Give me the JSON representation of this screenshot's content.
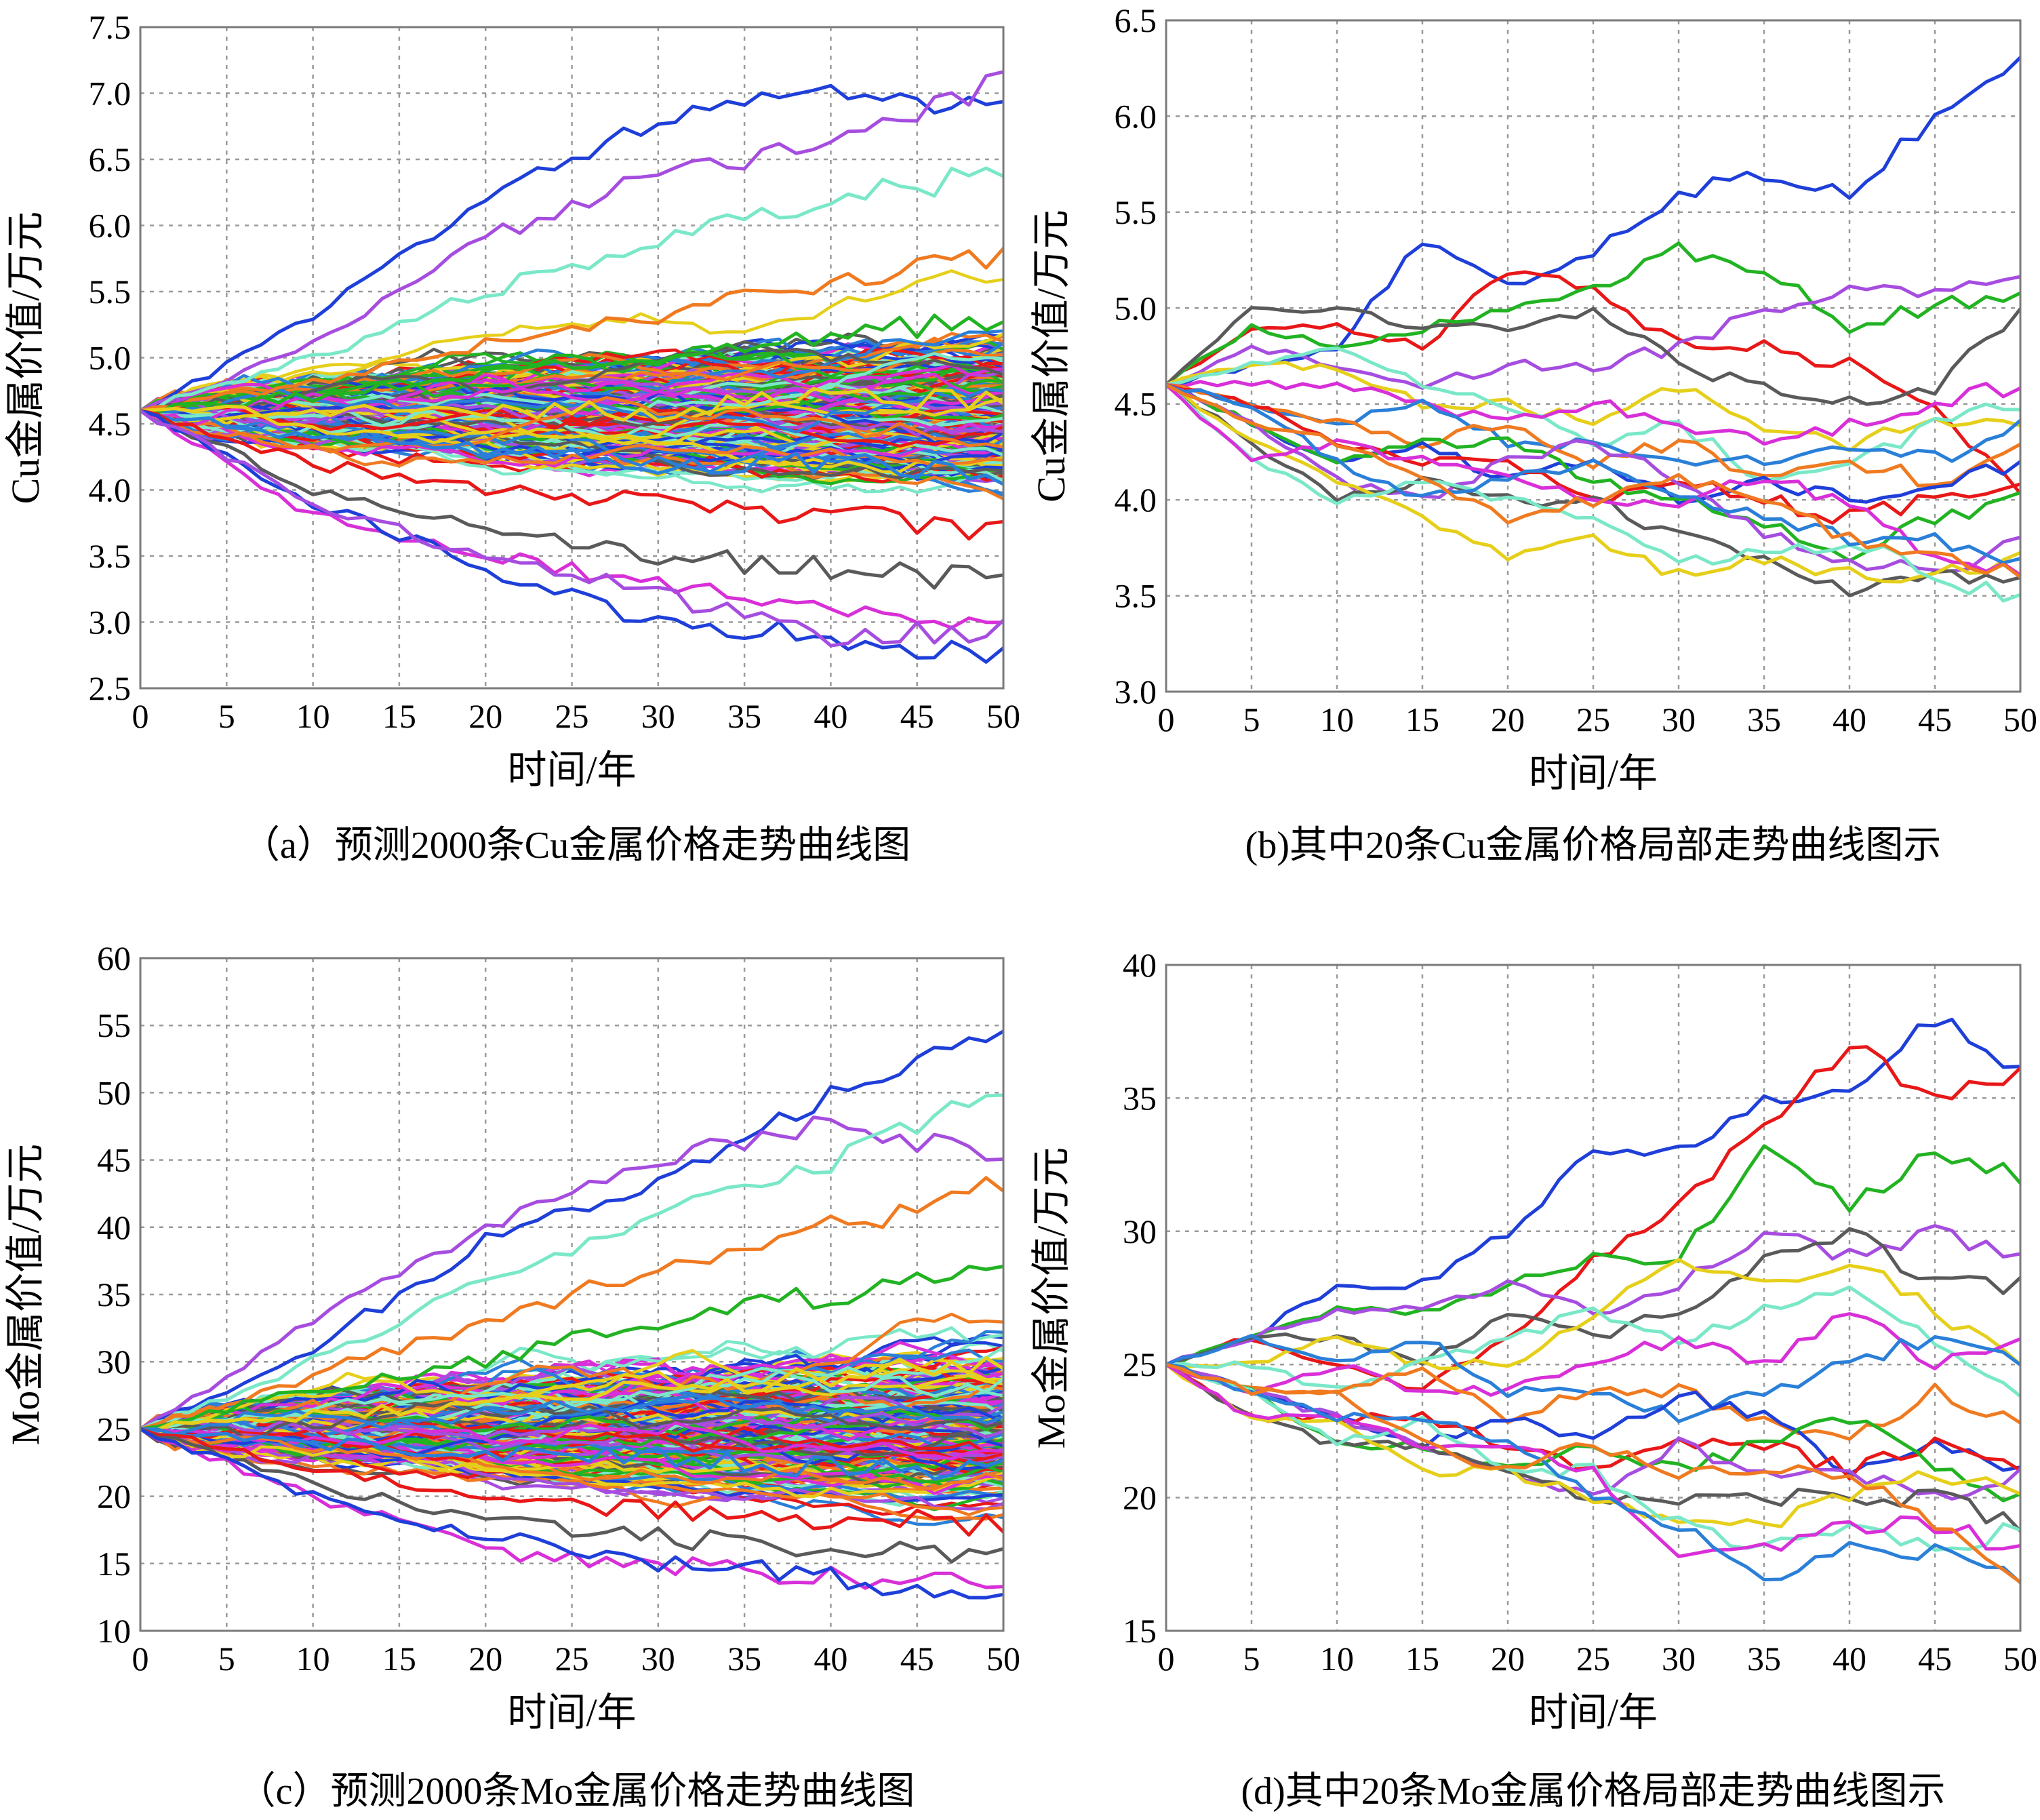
{
  "chart_data": [
    {
      "id": "a",
      "type": "line",
      "caption": "（a）预测2000条Cu金属价格走势曲线图",
      "xlabel": "时间/年",
      "ylabel": "Cu金属价值/万元",
      "xlim": [
        0,
        50
      ],
      "ylim": [
        2.5,
        7.5
      ],
      "xticks": [
        "0",
        "5",
        "10",
        "15",
        "20",
        "25",
        "30",
        "35",
        "40",
        "45",
        "50"
      ],
      "yticks": [
        "2.5",
        "3.0",
        "3.5",
        "4.0",
        "4.5",
        "5.0",
        "5.5",
        "6.0",
        "6.5",
        "7.0",
        "7.5"
      ],
      "grid": true,
      "start_value": 4.6,
      "line_count": 2000,
      "x": [
        0,
        10,
        20,
        30,
        40,
        50
      ],
      "series": [
        {
          "values": [
            4.6,
            5.3,
            6.2,
            6.8,
            7.0,
            6.9
          ]
        },
        {
          "values": [
            4.6,
            5.1,
            5.9,
            6.4,
            6.6,
            7.1
          ]
        },
        {
          "values": [
            4.6,
            5.0,
            5.5,
            5.9,
            6.2,
            6.4
          ]
        },
        {
          "values": [
            4.6,
            4.8,
            5.1,
            5.3,
            5.6,
            5.8
          ]
        },
        {
          "values": [
            4.6,
            4.7,
            4.9,
            5.0,
            5.2,
            5.3
          ]
        },
        {
          "values": [
            4.6,
            4.6,
            4.6,
            4.6,
            4.7,
            4.7
          ]
        },
        {
          "values": [
            4.6,
            4.4,
            4.3,
            4.2,
            4.2,
            4.1
          ]
        },
        {
          "values": [
            4.6,
            4.2,
            4.0,
            3.9,
            3.8,
            3.7
          ]
        },
        {
          "values": [
            4.6,
            4.0,
            3.7,
            3.5,
            3.4,
            3.3
          ]
        },
        {
          "values": [
            4.6,
            3.8,
            3.5,
            3.3,
            3.1,
            3.0
          ]
        },
        {
          "values": [
            4.6,
            3.9,
            3.4,
            3.0,
            2.9,
            2.75
          ]
        },
        {
          "values": [
            4.6,
            3.9,
            3.5,
            3.2,
            2.9,
            2.95
          ]
        }
      ]
    },
    {
      "id": "b",
      "type": "line",
      "caption": "(b)其中20条Cu金属价格局部走势曲线图示",
      "xlabel": "时间/年",
      "ylabel": "Cu金属价值/万元",
      "xlim": [
        0,
        50
      ],
      "ylim": [
        3.0,
        6.5
      ],
      "xticks": [
        "0",
        "5",
        "10",
        "15",
        "20",
        "25",
        "30",
        "35",
        "40",
        "45",
        "50"
      ],
      "yticks": [
        "3.0",
        "3.5",
        "4.0",
        "4.5",
        "5.0",
        "5.5",
        "6.0",
        "6.5"
      ],
      "grid": true,
      "start_value": 4.6,
      "line_count": 20,
      "x": [
        0,
        5,
        10,
        15,
        20,
        25,
        30,
        35,
        40,
        45,
        50
      ],
      "series": [
        {
          "values": [
            4.6,
            4.7,
            4.8,
            5.35,
            5.1,
            5.3,
            5.6,
            5.7,
            5.6,
            6.0,
            6.3
          ]
        },
        {
          "values": [
            4.6,
            4.9,
            4.9,
            4.8,
            5.2,
            5.1,
            4.8,
            4.8,
            4.7,
            4.5,
            4.0
          ]
        },
        {
          "values": [
            4.6,
            4.9,
            4.8,
            4.9,
            5.0,
            5.1,
            5.3,
            5.2,
            4.9,
            5.0,
            5.1
          ]
        },
        {
          "values": [
            4.6,
            4.8,
            4.7,
            4.6,
            4.7,
            4.7,
            4.8,
            5.0,
            5.1,
            5.1,
            5.2
          ]
        },
        {
          "values": [
            4.6,
            5.0,
            5.0,
            4.9,
            4.9,
            5.0,
            4.7,
            4.6,
            4.5,
            4.6,
            5.0
          ]
        },
        {
          "values": [
            4.6,
            4.7,
            4.7,
            4.5,
            4.5,
            4.4,
            4.6,
            4.4,
            4.3,
            4.4,
            4.4
          ]
        },
        {
          "values": [
            4.6,
            4.7,
            4.8,
            4.6,
            4.5,
            4.3,
            4.4,
            4.1,
            4.2,
            4.4,
            4.5
          ]
        },
        {
          "values": [
            4.6,
            4.6,
            4.6,
            4.5,
            4.4,
            4.5,
            4.4,
            4.3,
            4.4,
            4.5,
            4.6
          ]
        },
        {
          "values": [
            4.6,
            4.5,
            4.4,
            4.5,
            4.3,
            4.3,
            4.2,
            4.2,
            4.3,
            4.2,
            4.4
          ]
        },
        {
          "values": [
            4.6,
            4.5,
            4.4,
            4.3,
            4.4,
            4.2,
            4.3,
            4.1,
            4.2,
            4.1,
            4.3
          ]
        },
        {
          "values": [
            4.6,
            4.4,
            4.2,
            4.3,
            4.1,
            4.2,
            4.0,
            4.1,
            4.0,
            4.1,
            4.2
          ]
        },
        {
          "values": [
            4.6,
            4.5,
            4.3,
            4.2,
            4.2,
            4.0,
            4.1,
            4.0,
            3.9,
            4.0,
            4.1
          ]
        },
        {
          "values": [
            4.6,
            4.4,
            4.2,
            4.3,
            4.3,
            4.1,
            4.0,
            3.9,
            3.7,
            3.9,
            4.0
          ]
        },
        {
          "values": [
            4.6,
            4.4,
            4.1,
            4.0,
            4.2,
            4.3,
            4.1,
            3.8,
            3.7,
            3.6,
            3.8
          ]
        },
        {
          "values": [
            4.6,
            4.3,
            4.0,
            4.1,
            4.0,
            4.0,
            3.8,
            3.7,
            3.5,
            3.6,
            3.6
          ]
        },
        {
          "values": [
            4.6,
            4.3,
            4.1,
            3.9,
            3.7,
            3.8,
            3.6,
            3.7,
            3.6,
            3.6,
            3.7
          ]
        },
        {
          "values": [
            4.6,
            4.2,
            4.0,
            4.1,
            4.0,
            3.9,
            3.7,
            3.7,
            3.8,
            3.6,
            3.5
          ]
        },
        {
          "values": [
            4.6,
            4.2,
            4.3,
            4.2,
            4.1,
            4.0,
            4.0,
            4.1,
            4.0,
            3.7,
            3.6
          ]
        },
        {
          "values": [
            4.6,
            4.5,
            4.2,
            4.0,
            4.1,
            4.2,
            4.0,
            3.9,
            3.8,
            3.8,
            3.7
          ]
        },
        {
          "values": [
            4.6,
            4.4,
            4.3,
            4.1,
            3.9,
            4.0,
            4.1,
            4.0,
            3.8,
            3.7,
            3.6
          ]
        }
      ]
    },
    {
      "id": "c",
      "type": "line",
      "caption": "（c）预测2000条Mo金属价格走势曲线图",
      "xlabel": "时间/年",
      "ylabel": "Mo金属价值/万元",
      "xlim": [
        0,
        50
      ],
      "ylim": [
        10,
        60
      ],
      "xticks": [
        "0",
        "5",
        "10",
        "15",
        "20",
        "25",
        "30",
        "35",
        "40",
        "45",
        "50"
      ],
      "yticks": [
        "10",
        "15",
        "20",
        "25",
        "30",
        "35",
        "40",
        "45",
        "50",
        "55",
        "60"
      ],
      "grid": true,
      "start_value": 25,
      "line_count": 2000,
      "x": [
        0,
        10,
        20,
        30,
        40,
        50
      ],
      "series": [
        {
          "values": [
            25,
            31,
            39,
            43,
            50,
            55
          ]
        },
        {
          "values": [
            25,
            33,
            40,
            45,
            48,
            45
          ]
        },
        {
          "values": [
            25,
            30,
            36,
            41,
            45,
            50
          ]
        },
        {
          "values": [
            25,
            29,
            33,
            37,
            40,
            43
          ]
        },
        {
          "values": [
            25,
            28,
            30,
            33,
            35,
            37
          ]
        },
        {
          "values": [
            25,
            26,
            27,
            28,
            29,
            30
          ]
        },
        {
          "values": [
            25,
            24,
            23,
            23,
            22,
            22
          ]
        },
        {
          "values": [
            25,
            22,
            20,
            19,
            18,
            18
          ]
        },
        {
          "values": [
            25,
            21,
            18,
            17,
            16,
            16
          ]
        },
        {
          "values": [
            25,
            20,
            16,
            15,
            14,
            13
          ]
        },
        {
          "values": [
            25,
            20,
            17,
            15,
            14,
            12.5
          ]
        }
      ]
    },
    {
      "id": "d",
      "type": "line",
      "caption": "(d)其中20条Mo金属价格局部走势曲线图示",
      "xlabel": "时间/年",
      "ylabel": "Mo金属价值/万元",
      "xlim": [
        0,
        50
      ],
      "ylim": [
        15,
        40
      ],
      "xticks": [
        "0",
        "5",
        "10",
        "15",
        "20",
        "25",
        "30",
        "35",
        "40",
        "45",
        "50"
      ],
      "yticks": [
        "15",
        "20",
        "25",
        "30",
        "35",
        "40"
      ],
      "grid": true,
      "start_value": 25,
      "line_count": 20,
      "x": [
        0,
        5,
        10,
        15,
        20,
        25,
        30,
        35,
        40,
        45,
        50
      ],
      "series": [
        {
          "values": [
            25,
            26,
            28,
            28,
            30,
            33,
            33,
            35,
            35,
            38,
            36
          ]
        },
        {
          "values": [
            25,
            26,
            25,
            24,
            26,
            29,
            31,
            34,
            37,
            35,
            36
          ]
        },
        {
          "values": [
            25,
            26,
            27,
            27,
            28,
            29,
            29,
            33,
            31,
            33,
            32
          ]
        },
        {
          "values": [
            25,
            26,
            27,
            27,
            28,
            27,
            28,
            30,
            29,
            30,
            29
          ]
        },
        {
          "values": [
            25,
            26,
            26,
            25,
            27,
            26,
            27,
            29,
            30,
            28,
            28
          ]
        },
        {
          "values": [
            25,
            25,
            26,
            25,
            25,
            27,
            29,
            28,
            29,
            27,
            25
          ]
        },
        {
          "values": [
            25,
            25,
            24,
            25,
            26,
            27,
            26,
            27,
            28,
            26,
            24
          ]
        },
        {
          "values": [
            25,
            24,
            25,
            24,
            24,
            25,
            26,
            25,
            27,
            25,
            26
          ]
        },
        {
          "values": [
            25,
            26,
            25,
            26,
            24,
            24,
            23,
            24,
            25,
            26,
            25
          ]
        },
        {
          "values": [
            25,
            24,
            24,
            25,
            23,
            24,
            24,
            23,
            22,
            24,
            23
          ]
        },
        {
          "values": [
            25,
            24,
            23,
            22,
            23,
            22,
            24,
            23,
            21,
            22,
            21
          ]
        },
        {
          "values": [
            25,
            23,
            23,
            23,
            22,
            21,
            22,
            22,
            21,
            22,
            21
          ]
        },
        {
          "values": [
            25,
            24,
            22,
            22,
            21,
            22,
            21,
            22,
            23,
            21,
            20
          ]
        },
        {
          "values": [
            25,
            24,
            23,
            22,
            21,
            20,
            22,
            21,
            21,
            20,
            21
          ]
        },
        {
          "values": [
            25,
            23,
            22,
            22,
            21,
            20,
            20,
            20,
            20,
            20,
            19
          ]
        },
        {
          "values": [
            25,
            23,
            23,
            21,
            21,
            20,
            19,
            19,
            20,
            21,
            20
          ]
        },
        {
          "values": [
            25,
            24,
            22,
            23,
            21,
            21,
            19,
            18,
            19,
            18,
            19
          ]
        },
        {
          "values": [
            25,
            23,
            23,
            22,
            22,
            21,
            18,
            18,
            19,
            19,
            18
          ]
        },
        {
          "values": [
            25,
            24,
            23,
            23,
            22,
            20,
            19,
            17,
            18,
            18,
            17
          ]
        },
        {
          "values": [
            25,
            24,
            24,
            22,
            21,
            22,
            21,
            21,
            21,
            19,
            17
          ]
        }
      ]
    }
  ],
  "palette": [
    "#1f3fd9",
    "#e81818",
    "#22b322",
    "#a64de0",
    "#5a5a5a",
    "#e6cf1a",
    "#7ae8c8",
    "#d82fd8",
    "#2a7fd8",
    "#f07a20"
  ]
}
